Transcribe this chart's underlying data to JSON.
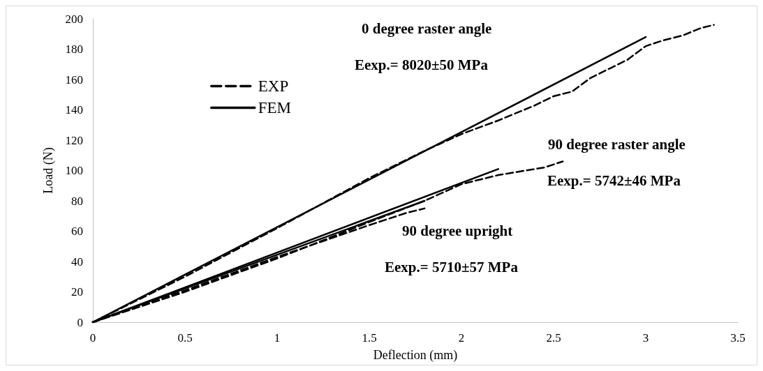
{
  "chart_data": {
    "type": "line",
    "xlabel": "Deflection (mm)",
    "ylabel": "Load (N)",
    "xlim": [
      0,
      3.5
    ],
    "xticks": [
      0,
      0.5,
      1,
      1.5,
      2,
      2.5,
      3,
      3.5
    ],
    "ylim": [
      0,
      200
    ],
    "yticks": [
      0,
      20,
      40,
      60,
      80,
      100,
      120,
      140,
      160,
      180,
      200
    ],
    "grid": false,
    "legend": "top left",
    "marker": "none",
    "annotations": [
      "0 degree raster angle",
      "Eexp.= 8020±50 MPa",
      "90 degree raster angle",
      "Eexp.= 5742±46 MPa",
      "90 degree upright",
      "Eexp.= 5710±57 MPa"
    ],
    "series": [
      {
        "name": "EXP",
        "color": "#000000",
        "line_style": "dashed",
        "x": [
          0,
          0.5,
          1,
          1.5,
          1.8,
          2,
          2.2,
          2.4,
          2.5,
          2.6,
          2.7,
          2.8,
          2.9,
          3,
          3.1,
          3.2,
          3.3,
          3.37
        ],
        "values": [
          0,
          30,
          62,
          95,
          113,
          124,
          133,
          143,
          149,
          152,
          161,
          167,
          173,
          182,
          186,
          189,
          194,
          196
        ]
      },
      {
        "name": "FEM",
        "color": "#000000",
        "line_style": "solid",
        "x": [
          0,
          3
        ],
        "values": [
          0,
          188
        ]
      },
      {
        "color": "#000000",
        "line_style": "dashed",
        "x": [
          0,
          0.5,
          1,
          1.5,
          1.8,
          2,
          2.2,
          2.35,
          2.45,
          2.55
        ],
        "values": [
          0,
          20,
          42,
          66,
          80,
          91,
          97,
          100,
          102,
          106
        ]
      },
      {
        "color": "#000000",
        "line_style": "solid",
        "x": [
          0,
          2.2
        ],
        "values": [
          0,
          101
        ]
      },
      {
        "color": "#000000",
        "line_style": "dashed",
        "x": [
          0,
          0.5,
          1,
          1.5,
          1.7,
          1.8
        ],
        "values": [
          0,
          21,
          43,
          64,
          72,
          75
        ]
      },
      {
        "color": "#000000",
        "line_style": "solid",
        "x": [
          0,
          1.8
        ],
        "values": [
          0,
          80
        ]
      }
    ]
  }
}
